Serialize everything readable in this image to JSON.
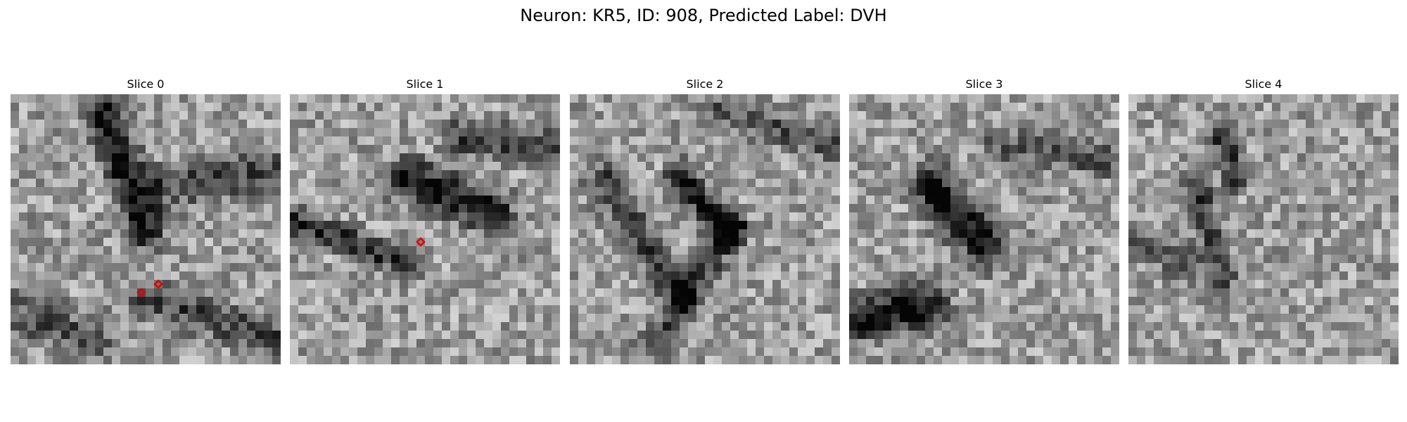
{
  "figure": {
    "title": "Neuron: KR5, ID: 908, Predicted Label: DVH",
    "marker_color": "#e00000"
  },
  "slices": [
    {
      "title": "Slice 0",
      "markers": [
        {
          "col": 15,
          "row": 23
        },
        {
          "col": 17,
          "row": 22
        }
      ]
    },
    {
      "title": "Slice 1",
      "markers": [
        {
          "col": 15,
          "row": 17
        }
      ]
    },
    {
      "title": "Slice 2",
      "markers": []
    },
    {
      "title": "Slice 3",
      "markers": []
    },
    {
      "title": "Slice 4",
      "markers": []
    }
  ]
}
